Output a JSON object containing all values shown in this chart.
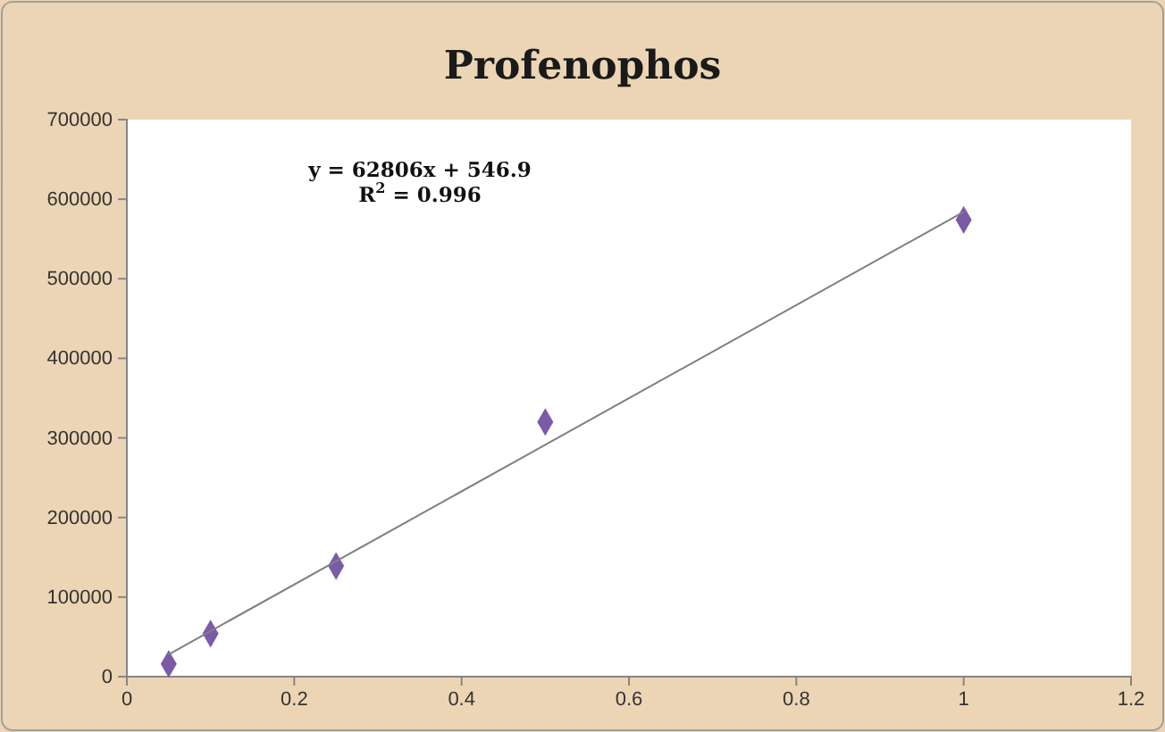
{
  "chart_data": {
    "type": "scatter",
    "title": "Profenophos",
    "x": [
      0.05,
      0.1,
      0.25,
      0.5,
      1
    ],
    "series": [
      {
        "color": "#7b5ba6",
        "marker": "diamond",
        "values": [
          16000,
          54000,
          139000,
          320000,
          574000
        ]
      },
      {
        "type": "line",
        "color": "#7f7f7f",
        "x": [
          0.05,
          1
        ],
        "values": [
          28000,
          584000
        ]
      }
    ],
    "xlim": [
      0,
      1.2
    ],
    "xticks": [
      0,
      0.2,
      0.4,
      0.6,
      0.8,
      1,
      1.2
    ],
    "ylim": [
      0,
      700000
    ],
    "yticks": [
      0,
      100000,
      200000,
      300000,
      400000,
      500000,
      600000,
      700000
    ],
    "grid": false,
    "annotations": [
      "y = 62806x + 546.9",
      "R$^{2}$ = 0.996"
    ]
  }
}
